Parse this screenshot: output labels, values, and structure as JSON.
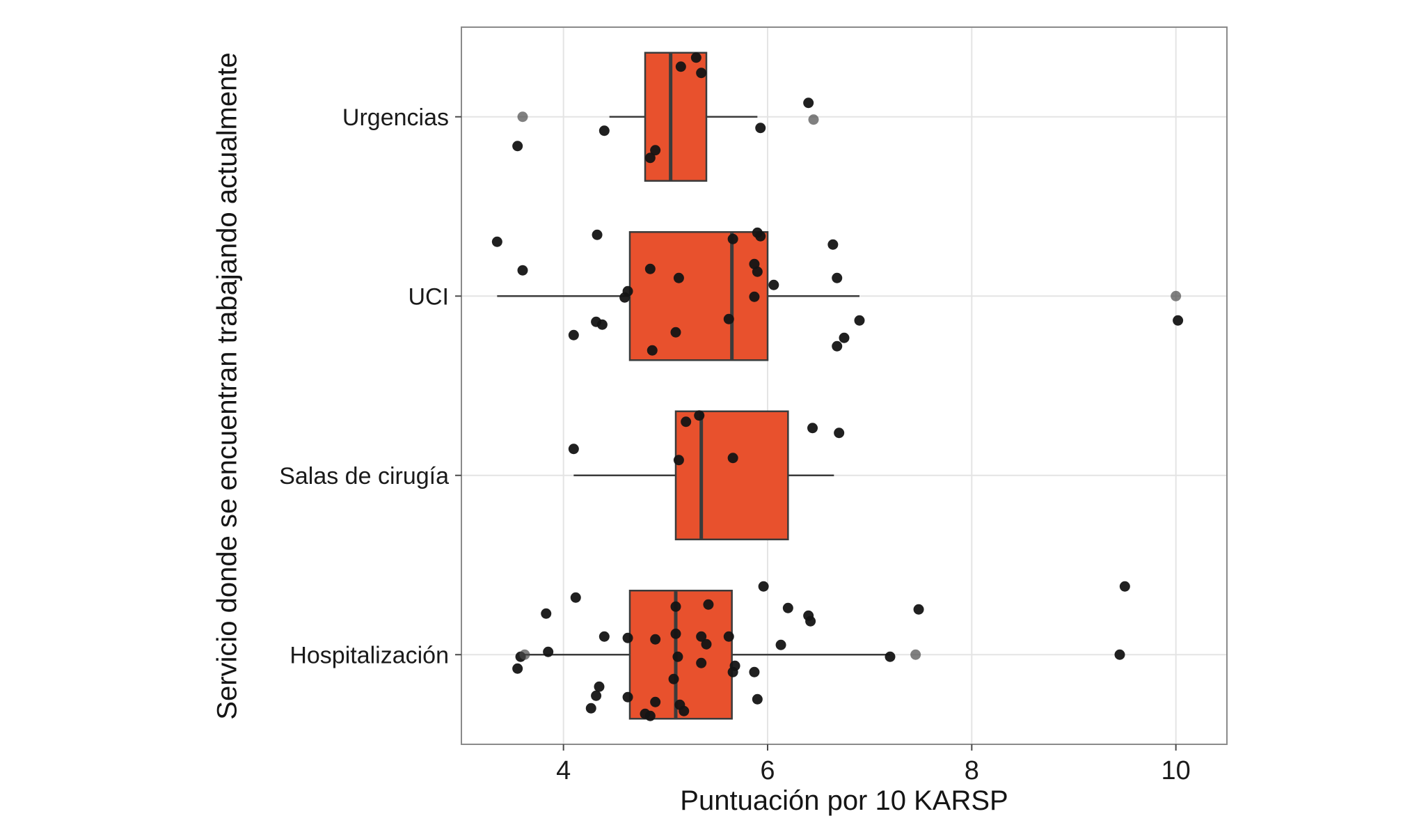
{
  "chart_data": {
    "type": "boxplot",
    "orientation": "horizontal",
    "title": "",
    "xlabel": "Puntuación por 10 KARSP",
    "ylabel": "Servicio donde se encuentran trabajando actualmente",
    "xlim": [
      3.0,
      10.5
    ],
    "x_ticks": [
      4,
      6,
      8,
      10
    ],
    "grid": true,
    "legend": "none",
    "categories": [
      "Urgencias",
      "UCI",
      "Salas de cirugía",
      "Hospitalización"
    ],
    "box_fill": "#E8512D",
    "box_stroke": "#3B3B3B",
    "point_color": "#141414",
    "muted_point_color": "#4A4A4A",
    "grid_color": "#E4E4E4",
    "panel_border_color": "#8A8A8A",
    "axis_text_color": "#1A1A1A",
    "boxes": [
      {
        "category": "Urgencias",
        "whisker_low": 4.45,
        "q1": 4.8,
        "median": 5.05,
        "q3": 5.4,
        "whisker_high": 5.9
      },
      {
        "category": "UCI",
        "whisker_low": 3.35,
        "q1": 4.65,
        "median": 5.65,
        "q3": 6.0,
        "whisker_high": 6.9
      },
      {
        "category": "Salas de cirugía",
        "whisker_low": 4.1,
        "q1": 5.1,
        "median": 5.35,
        "q3": 6.2,
        "whisker_high": 6.65
      },
      {
        "category": "Hospitalización",
        "whisker_low": 3.6,
        "q1": 4.65,
        "median": 5.1,
        "q3": 5.65,
        "whisker_high": 7.2
      }
    ],
    "jitter_points": [
      [
        [
          5.15,
          -72
        ],
        [
          5.3,
          -85
        ],
        [
          5.35,
          -63
        ],
        [
          6.4,
          -20
        ],
        [
          6.45,
          4,
          "muted"
        ],
        [
          3.6,
          0,
          "muted"
        ],
        [
          3.55,
          42
        ],
        [
          4.4,
          20
        ],
        [
          4.85,
          59
        ],
        [
          4.9,
          48
        ],
        [
          5.93,
          16
        ]
      ],
      [
        [
          3.35,
          -78
        ],
        [
          3.6,
          -37
        ],
        [
          4.33,
          -88
        ],
        [
          4.63,
          -7
        ],
        [
          4.6,
          2
        ],
        [
          4.32,
          37
        ],
        [
          4.38,
          41
        ],
        [
          4.1,
          56
        ],
        [
          4.85,
          -39
        ],
        [
          5.13,
          -26
        ],
        [
          5.1,
          52
        ],
        [
          4.87,
          78
        ],
        [
          5.62,
          33
        ],
        [
          5.66,
          -82
        ],
        [
          5.9,
          -91
        ],
        [
          5.93,
          -86
        ],
        [
          5.87,
          -46
        ],
        [
          5.9,
          -35
        ],
        [
          6.06,
          -16
        ],
        [
          5.87,
          1
        ],
        [
          6.64,
          -74
        ],
        [
          6.68,
          -26
        ],
        [
          6.9,
          35
        ],
        [
          6.68,
          72
        ],
        [
          6.75,
          60
        ],
        [
          10.0,
          0,
          "muted"
        ],
        [
          10.02,
          35
        ]
      ],
      [
        [
          5.2,
          -77
        ],
        [
          5.33,
          -86
        ],
        [
          6.44,
          -68
        ],
        [
          6.7,
          -61
        ],
        [
          4.1,
          -38
        ],
        [
          5.13,
          -22
        ],
        [
          5.66,
          -25
        ]
      ],
      [
        [
          4.12,
          -82
        ],
        [
          5.96,
          -98
        ],
        [
          3.83,
          -59
        ],
        [
          5.1,
          -69
        ],
        [
          5.42,
          -72
        ],
        [
          6.2,
          -67
        ],
        [
          6.4,
          -56
        ],
        [
          6.42,
          -48
        ],
        [
          7.48,
          -65
        ],
        [
          9.5,
          -98
        ],
        [
          4.4,
          -26
        ],
        [
          4.63,
          -24
        ],
        [
          4.9,
          -22
        ],
        [
          5.1,
          -30
        ],
        [
          5.35,
          -26
        ],
        [
          5.4,
          -15
        ],
        [
          5.62,
          -26
        ],
        [
          6.13,
          -14
        ],
        [
          3.85,
          -4
        ],
        [
          3.58,
          3
        ],
        [
          3.62,
          0,
          "muted"
        ],
        [
          5.12,
          3
        ],
        [
          5.35,
          12
        ],
        [
          5.68,
          16
        ],
        [
          7.2,
          3
        ],
        [
          7.45,
          0,
          "muted"
        ],
        [
          9.45,
          0
        ],
        [
          3.55,
          20
        ],
        [
          5.66,
          25
        ],
        [
          5.87,
          25
        ],
        [
          5.08,
          35
        ],
        [
          4.35,
          46
        ],
        [
          4.32,
          59
        ],
        [
          4.63,
          61
        ],
        [
          4.9,
          68
        ],
        [
          5.9,
          64
        ],
        [
          5.14,
          72
        ],
        [
          4.27,
          77
        ],
        [
          4.8,
          85
        ],
        [
          4.85,
          88
        ],
        [
          5.18,
          81
        ]
      ]
    ]
  }
}
